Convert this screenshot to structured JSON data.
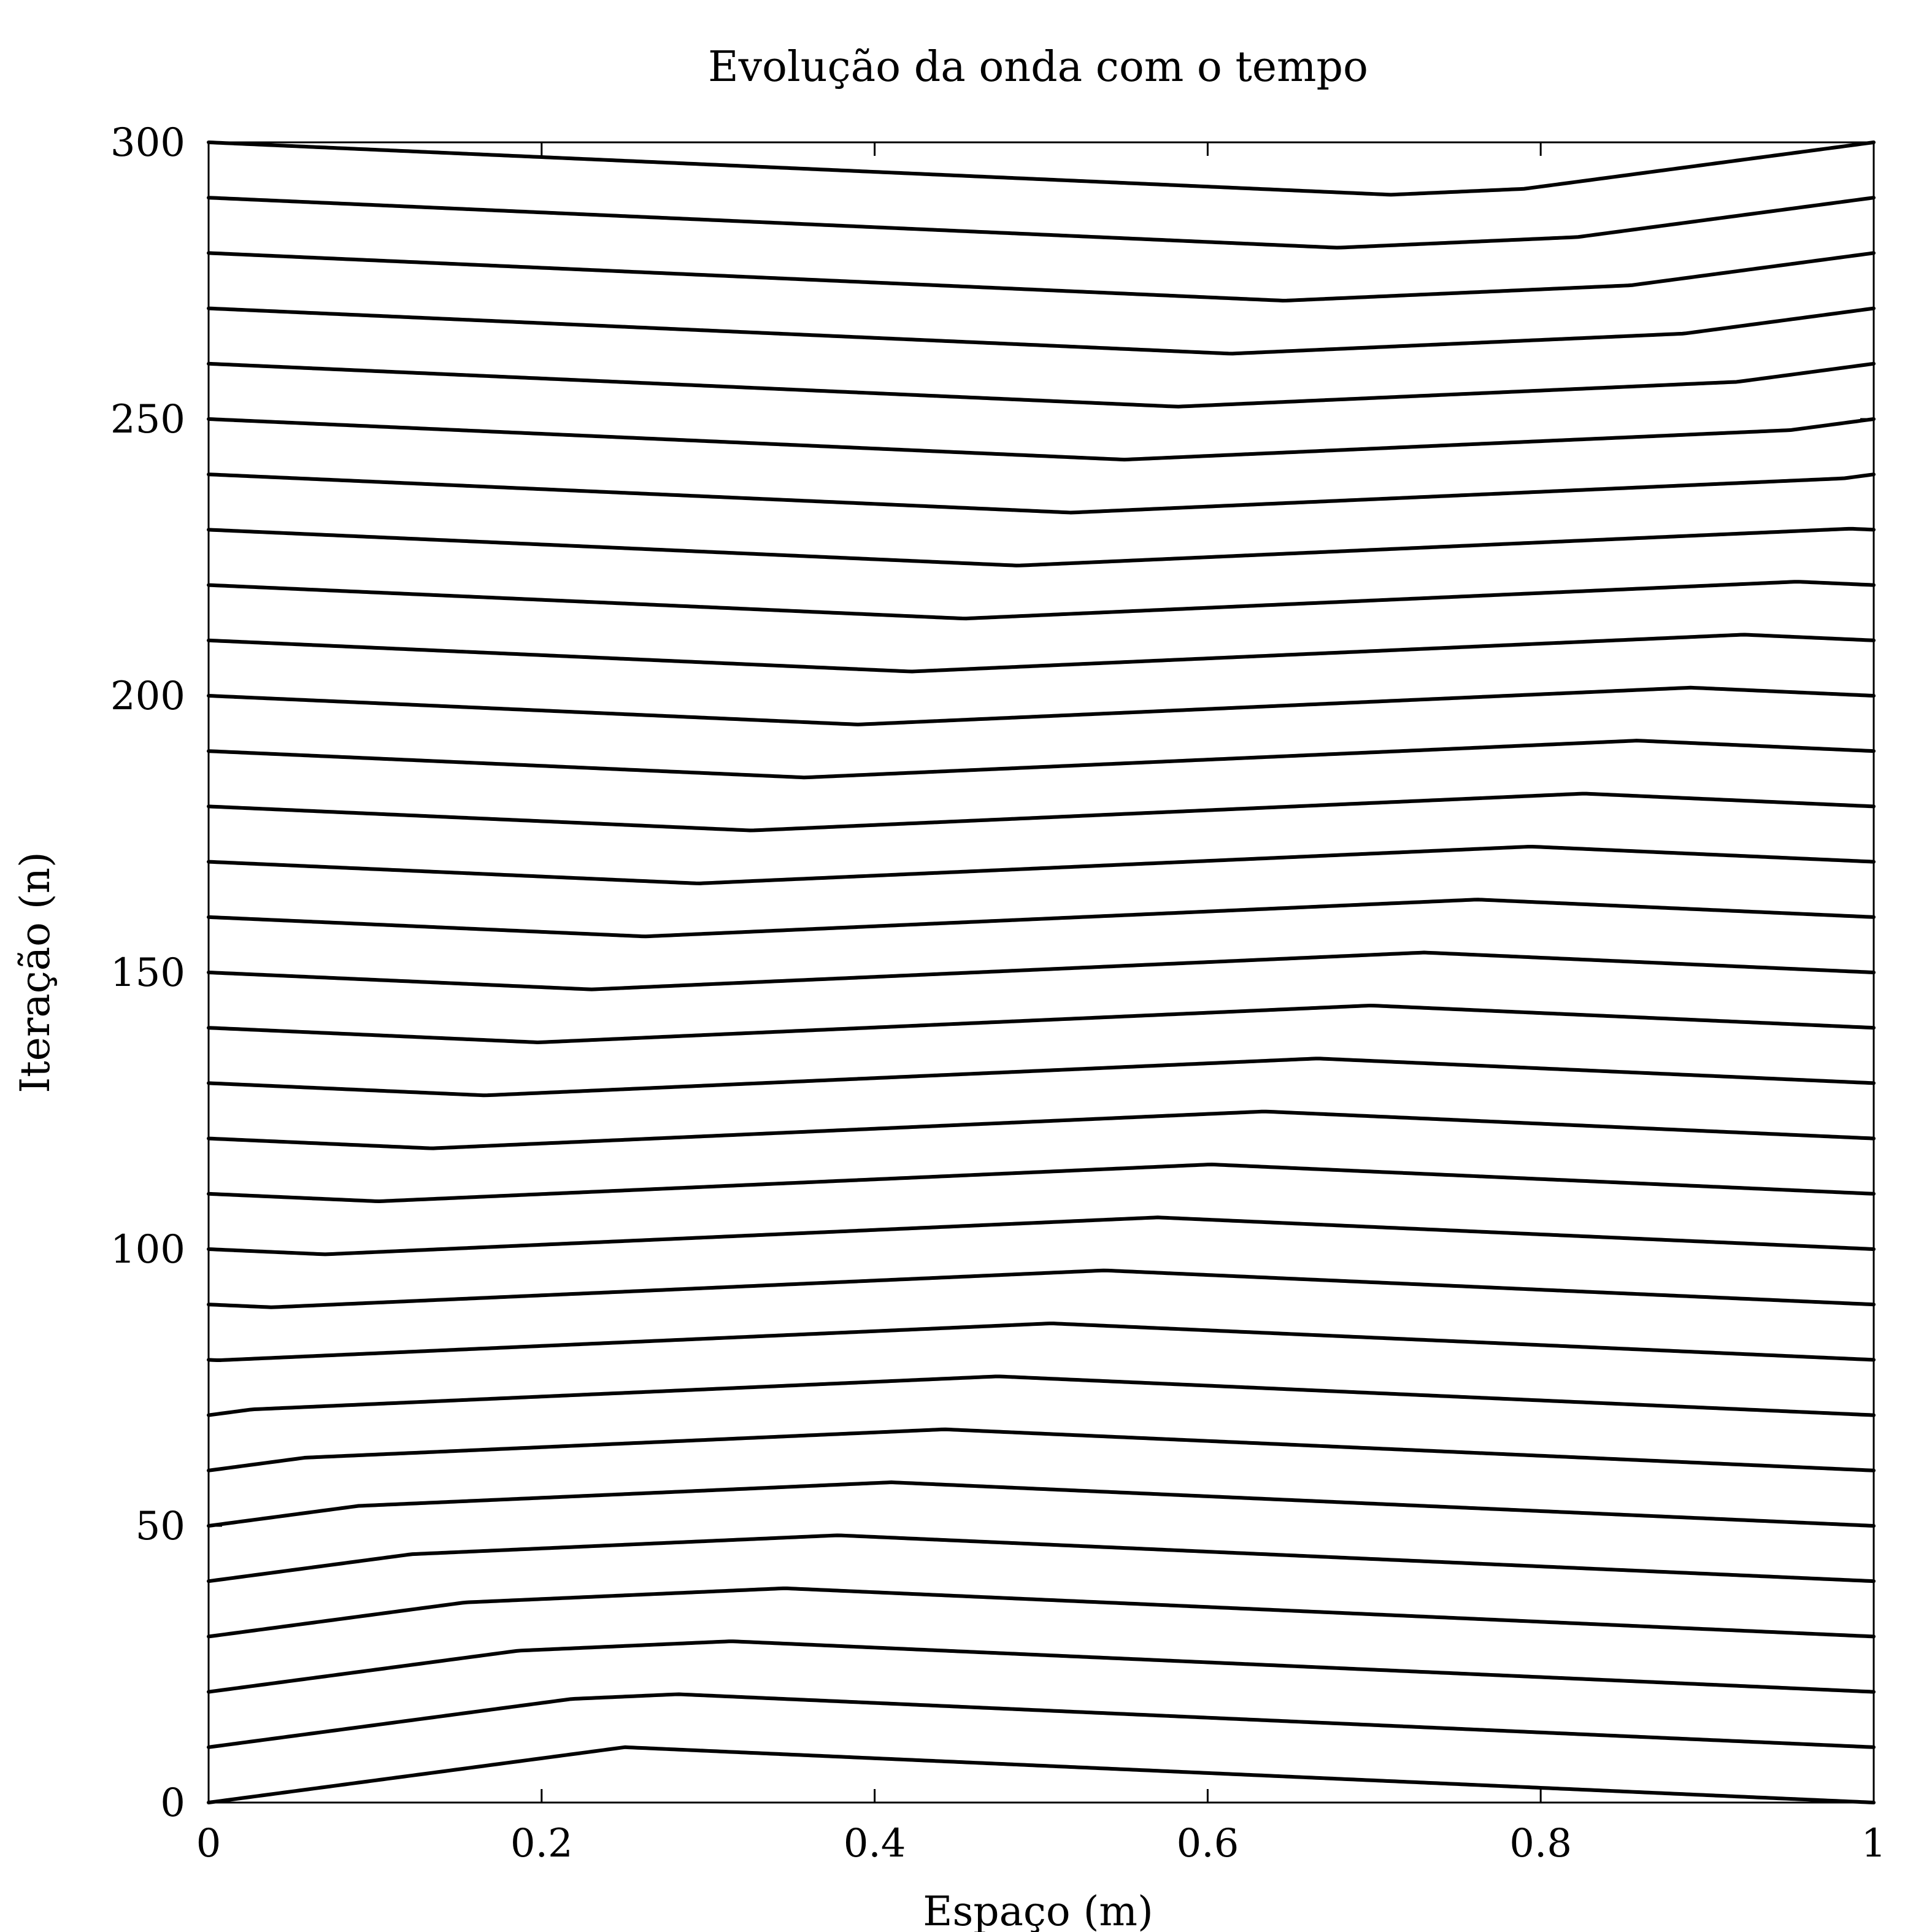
{
  "chart_data": {
    "type": "line",
    "title": "Evolução da onda com o tempo",
    "xlabel": "Espaço (m)",
    "ylabel": "Iteração (n)",
    "xlim": [
      0,
      1
    ],
    "ylim": [
      0,
      300
    ],
    "x_ticks": [
      0,
      0.2,
      0.4,
      0.6,
      0.8,
      1
    ],
    "x_tick_labels": [
      "0",
      "0.2",
      "0.4",
      "0.6",
      "0.8",
      "1"
    ],
    "y_ticks": [
      0,
      50,
      100,
      150,
      200,
      250,
      300
    ],
    "y_tick_labels": [
      "0",
      "50",
      "100",
      "150",
      "200",
      "250",
      "300"
    ],
    "grid": false,
    "legend": "none",
    "line_color": "#000000",
    "wave": {
      "iteration_step": 10,
      "iteration_count": 31,
      "vertical_scale": 1,
      "initial_peak_x": 0.25,
      "initial_peak_height": 10,
      "peak_speed_per_iteration": 0.0032,
      "boundary": "fixed-reflecting"
    }
  }
}
